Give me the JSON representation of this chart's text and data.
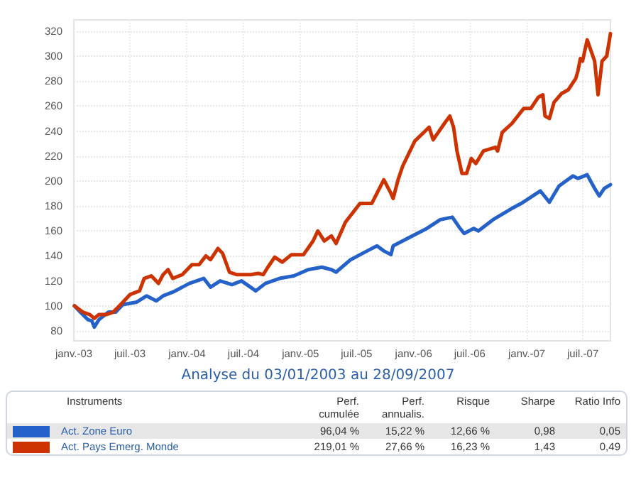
{
  "chart_data": {
    "type": "line",
    "x": [
      "2003-01-03",
      "2003-01-22",
      "2003-02-15",
      "2003-02-28",
      "2003-03-08",
      "2003-03-23",
      "2003-04-23",
      "2003-05-16",
      "2003-06-08",
      "2003-07-23",
      "2003-08-24",
      "2003-09-24",
      "2003-10-16",
      "2003-11-16",
      "2003-12-17",
      "2004-01-09",
      "2004-02-24",
      "2004-03-17",
      "2004-04-17",
      "2004-05-25",
      "2004-06-25",
      "2004-08-10",
      "2004-09-10",
      "2004-10-26",
      "2004-12-11",
      "2005-01-26",
      "2005-03-11",
      "2005-04-11",
      "2005-04-26",
      "2005-06-12",
      "2005-08-12",
      "2005-09-05",
      "2005-09-27",
      "2005-10-20",
      "2005-10-27",
      "2005-12-28",
      "2006-02-13",
      "2006-03-28",
      "2006-05-06",
      "2006-05-28",
      "2006-06-13",
      "2006-07-14",
      "2006-07-29",
      "2006-09-14",
      "2006-11-14",
      "2006-12-14",
      "2007-02-14",
      "2007-03-15",
      "2007-04-15",
      "2007-05-30",
      "2007-06-15",
      "2007-07-15",
      "2007-08-08",
      "2007-08-23",
      "2007-09-08",
      "2007-09-28"
    ],
    "series": [
      {
        "name": "Act. Zone Euro",
        "color": "#2462c9",
        "values": [
          100,
          95,
          89,
          88,
          83,
          89,
          95,
          95,
          101,
          103,
          108,
          104,
          108,
          111,
          115,
          118,
          122,
          115,
          120,
          117,
          120,
          112,
          118,
          122,
          124,
          129,
          131,
          129,
          127,
          137,
          145,
          148,
          144,
          141,
          148,
          156,
          162,
          169,
          171,
          163,
          158,
          162,
          160,
          169,
          178,
          182,
          192,
          183,
          196,
          204,
          202,
          205,
          194,
          188,
          194,
          197
        ]
      },
      {
        "name": "Act. Pays Emerg. Monde",
        "color": "#cc3300",
        "x": [
          "2003-01-03",
          "2003-01-30",
          "2003-02-22",
          "2003-03-08",
          "2003-03-23",
          "2003-04-15",
          "2003-05-08",
          "2003-06-01",
          "2003-07-01",
          "2003-08-01",
          "2003-08-16",
          "2003-09-08",
          "2003-10-01",
          "2003-10-16",
          "2003-11-01",
          "2003-11-16",
          "2003-12-17",
          "2004-01-17",
          "2004-02-09",
          "2004-03-02",
          "2004-03-17",
          "2004-04-10",
          "2004-04-25",
          "2004-05-17",
          "2004-06-10",
          "2004-07-25",
          "2004-08-18",
          "2004-09-03",
          "2004-09-18",
          "2004-10-10",
          "2004-11-03",
          "2004-12-03",
          "2005-01-11",
          "2005-02-11",
          "2005-02-26",
          "2005-03-19",
          "2005-04-11",
          "2005-04-26",
          "2005-05-26",
          "2005-07-12",
          "2005-08-19",
          "2005-09-27",
          "2005-10-20",
          "2005-10-27",
          "2005-11-12",
          "2005-11-27",
          "2006-01-05",
          "2006-02-20",
          "2006-03-05",
          "2006-04-13",
          "2006-04-28",
          "2006-05-10",
          "2006-05-21",
          "2006-06-06",
          "2006-06-21",
          "2006-07-06",
          "2006-07-21",
          "2006-08-14",
          "2006-09-22",
          "2006-09-29",
          "2006-10-14",
          "2006-11-14",
          "2006-12-22",
          "2007-01-14",
          "2007-02-07",
          "2007-02-22",
          "2007-03-01",
          "2007-03-15",
          "2007-03-30",
          "2007-04-23",
          "2007-05-15",
          "2007-06-08",
          "2007-06-15",
          "2007-06-23",
          "2007-06-30",
          "2007-07-15",
          "2007-08-01",
          "2007-08-08",
          "2007-08-19",
          "2007-09-01",
          "2007-09-16",
          "2007-09-28"
        ],
        "values": [
          100,
          95,
          93,
          90,
          93,
          93,
          95,
          101,
          109,
          112,
          122,
          124,
          118,
          125,
          129,
          122,
          125,
          133,
          133,
          140,
          137,
          146,
          142,
          127,
          125,
          125,
          126,
          125,
          131,
          139,
          135,
          141,
          141,
          152,
          160,
          152,
          156,
          150,
          167,
          182,
          182,
          201,
          190,
          186,
          201,
          212,
          232,
          243,
          233,
          247,
          252,
          243,
          224,
          206,
          206,
          218,
          214,
          224,
          227,
          224,
          239,
          246,
          258,
          258,
          267,
          269,
          252,
          250,
          263,
          270,
          273,
          282,
          288,
          298,
          296,
          313,
          301,
          296,
          269,
          296,
          300,
          318
        ]
      }
    ],
    "xlim": [
      "2003-01-01",
      "2007-09-28"
    ],
    "xticks": [
      {
        "value": "2003-01-01",
        "label": "janv.-03"
      },
      {
        "value": "2003-07-01",
        "label": "juil.-03"
      },
      {
        "value": "2004-01-01",
        "label": "janv.-04"
      },
      {
        "value": "2004-07-01",
        "label": "juil.-04"
      },
      {
        "value": "2005-01-01",
        "label": "janv.-05"
      },
      {
        "value": "2005-07-01",
        "label": "juil.-05"
      },
      {
        "value": "2006-01-01",
        "label": "janv.-06"
      },
      {
        "value": "2006-07-01",
        "label": "juil.-06"
      },
      {
        "value": "2007-01-01",
        "label": "janv.-07"
      },
      {
        "value": "2007-07-01",
        "label": "juil.-07"
      }
    ],
    "ylim": [
      72,
      329
    ],
    "yticks": [
      80,
      100,
      120,
      140,
      160,
      180,
      200,
      220,
      240,
      260,
      280,
      300,
      320
    ],
    "grid": true,
    "legend": "bottom",
    "marker": "none",
    "line_style": "solid",
    "annotations": [
      "Analyse du 03/01/2003 au 28/09/2007",
      "Instruments",
      "Perf. cumulée",
      "Perf. annualis.",
      "Risque",
      "Sharpe",
      "Ratio Info",
      "96,04 %",
      "15,22 %",
      "12,66 %",
      "0,98",
      "0,05",
      "219,01 %",
      "27,66 %",
      "16,23 %",
      "1,43",
      "0,49"
    ]
  }
}
